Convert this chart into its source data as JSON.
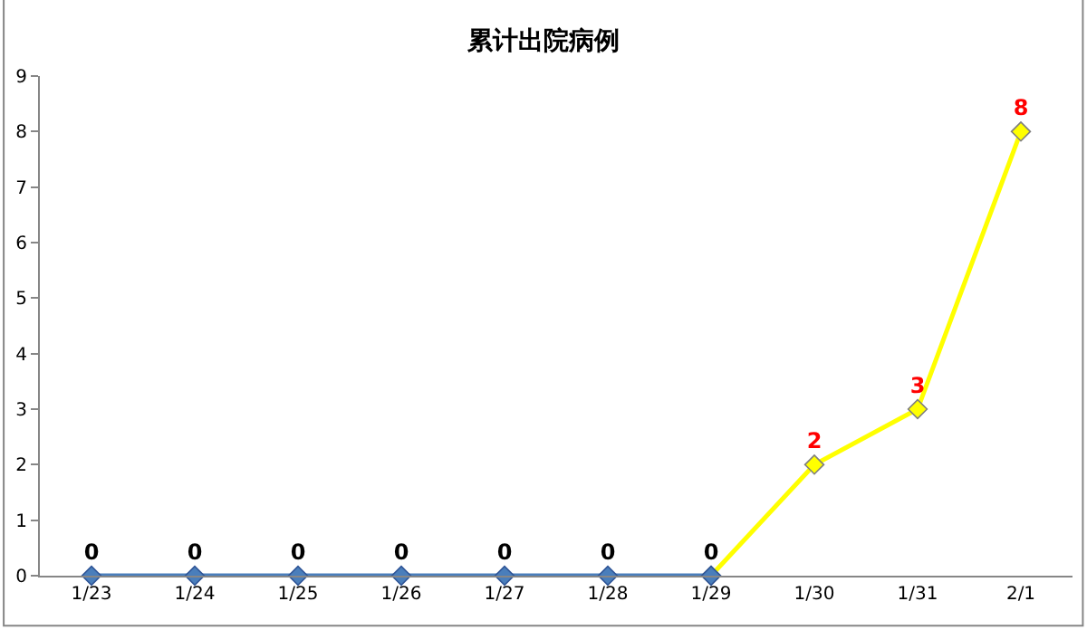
{
  "chart_data": {
    "type": "line",
    "title": "累计出院病例",
    "categories": [
      "1/23",
      "1/24",
      "1/25",
      "1/26",
      "1/27",
      "1/28",
      "1/29",
      "1/30",
      "1/31",
      "2/1"
    ],
    "series": [
      {
        "color": "#ffff00",
        "values": [
          null,
          null,
          null,
          null,
          null,
          null,
          0,
          2,
          3,
          8
        ],
        "value_labels": [
          null,
          null,
          null,
          null,
          null,
          null,
          null,
          "2",
          "3",
          "8"
        ]
      },
      {
        "color": "#4a7ebb",
        "values": [
          0,
          0,
          0,
          0,
          0,
          0,
          0,
          null,
          null,
          null
        ],
        "value_labels": [
          "0",
          "0",
          "0",
          "0",
          "0",
          "0",
          "0",
          null,
          null,
          null
        ]
      }
    ],
    "ylim": [
      0,
      9
    ],
    "yticks": [
      0,
      1,
      2,
      3,
      4,
      5,
      6,
      7,
      8,
      9
    ],
    "marker": "diamond",
    "line_style": "solid"
  }
}
